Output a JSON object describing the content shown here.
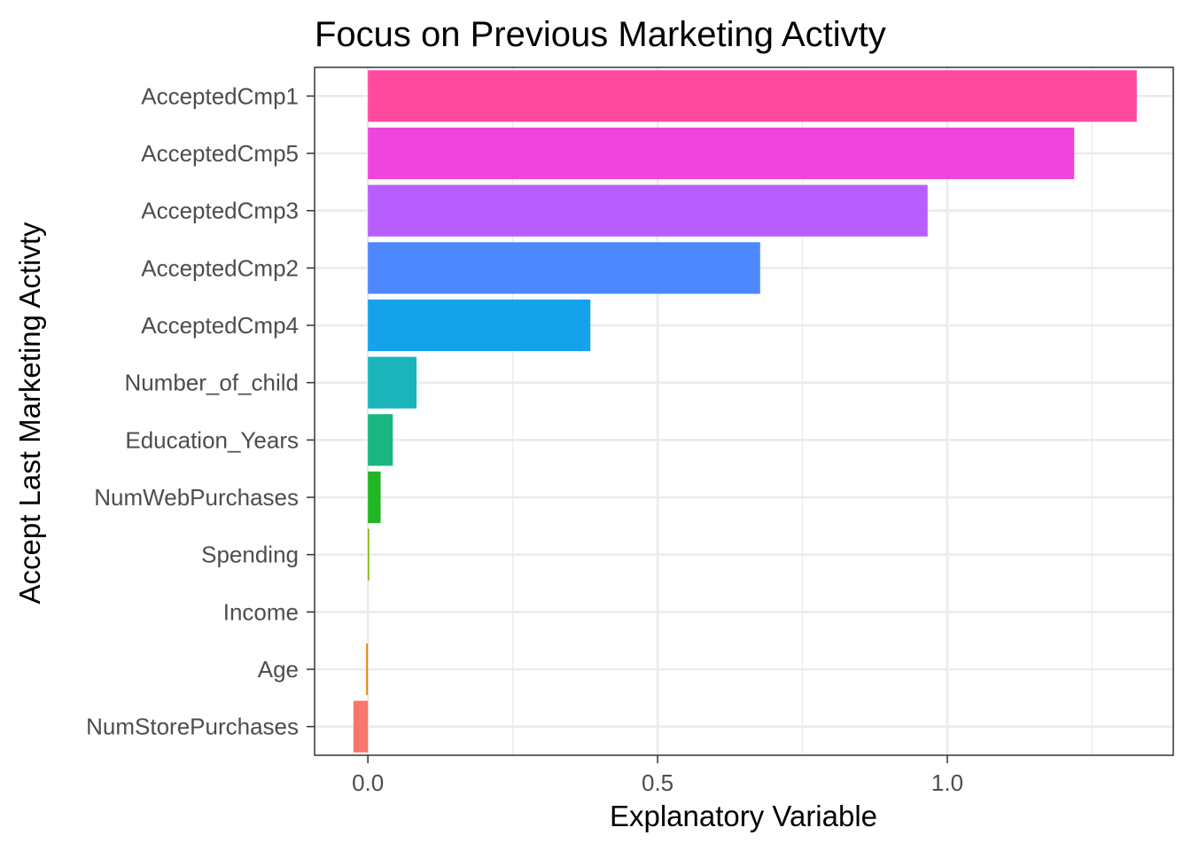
{
  "chart_data": {
    "type": "bar",
    "orientation": "horizontal",
    "title": "Focus on Previous Marketing Activty",
    "xlabel": "Explanatory Variable",
    "ylabel": "Accept Last Marketing Activty",
    "xlim": [
      -0.092,
      1.39
    ],
    "x_ticks": [
      0.0,
      0.5,
      1.0
    ],
    "x_tick_labels": [
      "0.0",
      "0.5",
      "1.0"
    ],
    "grid": true,
    "legend": "none",
    "categories": [
      "AcceptedCmp1",
      "AcceptedCmp5",
      "AcceptedCmp3",
      "AcceptedCmp2",
      "AcceptedCmp4",
      "Number_of_child",
      "Education_Years",
      "NumWebPurchases",
      "Spending",
      "Income",
      "Age",
      "NumStorePurchases"
    ],
    "values": [
      1.327,
      1.219,
      0.966,
      0.677,
      0.384,
      0.084,
      0.043,
      0.022,
      0.002,
      0.0,
      -0.003,
      -0.025
    ],
    "colors": [
      "#FF4AA0",
      "#EF44DE",
      "#B85EFF",
      "#4E88FF",
      "#14A3EB",
      "#19B5BB",
      "#19B681",
      "#21B623",
      "#7CAE00",
      "#B79F00",
      "#DE8C00",
      "#F8766D"
    ]
  }
}
